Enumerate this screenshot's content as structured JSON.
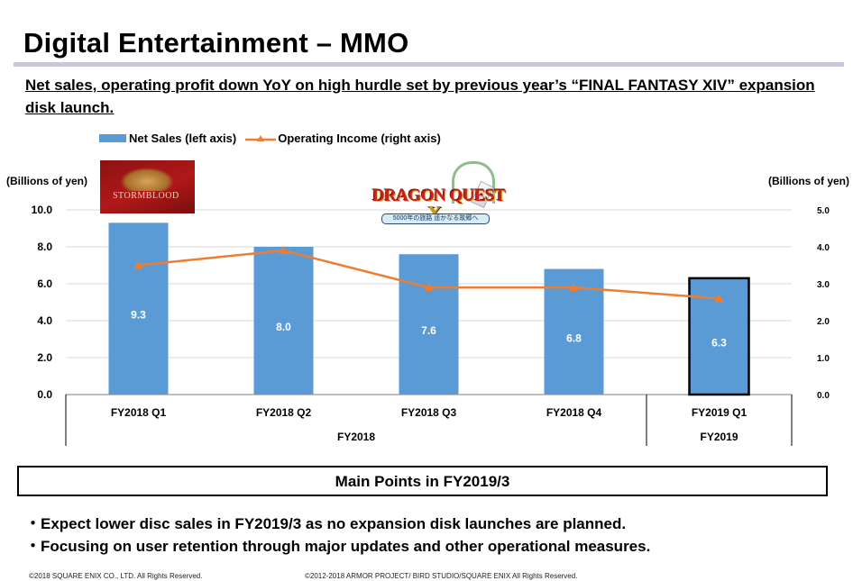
{
  "slide": {
    "title": "Digital Entertainment – MMO",
    "subtitle": "Net sales, operating profit down YoY on high hurdle set by previous year’s “FINAL FANTASY XIV” expansion disk launch.",
    "logos": {
      "ff14": {
        "name": "STORMBLOOD"
      },
      "dq10": {
        "name": "DRAGON QUEST",
        "numeral": "X",
        "ribbon": "5000年の旅路 遥かなる故郷へ"
      }
    },
    "main_points": {
      "heading": "Main Points in FY2019/3",
      "items": [
        "・Expect lower disc sales in FY2019/3 as no expansion disk launches are planned.",
        "・Focusing on user retention through major updates and other operational measures."
      ]
    },
    "footer": {
      "left": "©2018 SQUARE ENIX CO., LTD. All Rights Reserved.",
      "right": "©2012-2018 ARMOR PROJECT/ BIRD STUDIO/SQUARE ENIX All Rights Reserved."
    }
  },
  "colors": {
    "bar": "#5b9bd5",
    "line": "#ed7d31",
    "grid": "#d9d9d9",
    "title_rule": "#ccc3dd",
    "highlight_border": "#000000"
  },
  "chart_data": {
    "type": "bar",
    "title": "",
    "left_axis_label": "(Billions of yen)",
    "right_axis_label": "(Billions of yen)",
    "categories": [
      "FY2018 Q1",
      "FY2018 Q2",
      "FY2018 Q3",
      "FY2018 Q4",
      "FY2019 Q1"
    ],
    "groups": [
      {
        "label": "FY2018",
        "count": 4
      },
      {
        "label": "FY2019",
        "count": 1
      }
    ],
    "series": [
      {
        "name": "Net Sales (left axis)",
        "type": "bar",
        "axis": "left",
        "values": [
          9.3,
          8.0,
          7.6,
          6.8,
          6.3
        ],
        "labels": [
          "9.3",
          "8.0",
          "7.6",
          "6.8",
          "6.3"
        ]
      },
      {
        "name": "Operating Income (right axis)",
        "type": "line",
        "axis": "right",
        "marker": "triangle",
        "values": [
          3.5,
          3.9,
          2.9,
          2.9,
          2.6
        ]
      }
    ],
    "left_ylim": [
      0,
      10
    ],
    "right_ylim": [
      0,
      5
    ],
    "left_ticks": [
      "0.0",
      "2.0",
      "4.0",
      "6.0",
      "8.0",
      "10.0"
    ],
    "right_ticks": [
      "0.0",
      "1.0",
      "2.0",
      "3.0",
      "4.0",
      "5.0"
    ],
    "highlighted_category": "FY2019 Q1",
    "grid": true,
    "legend_position": "top-left"
  }
}
